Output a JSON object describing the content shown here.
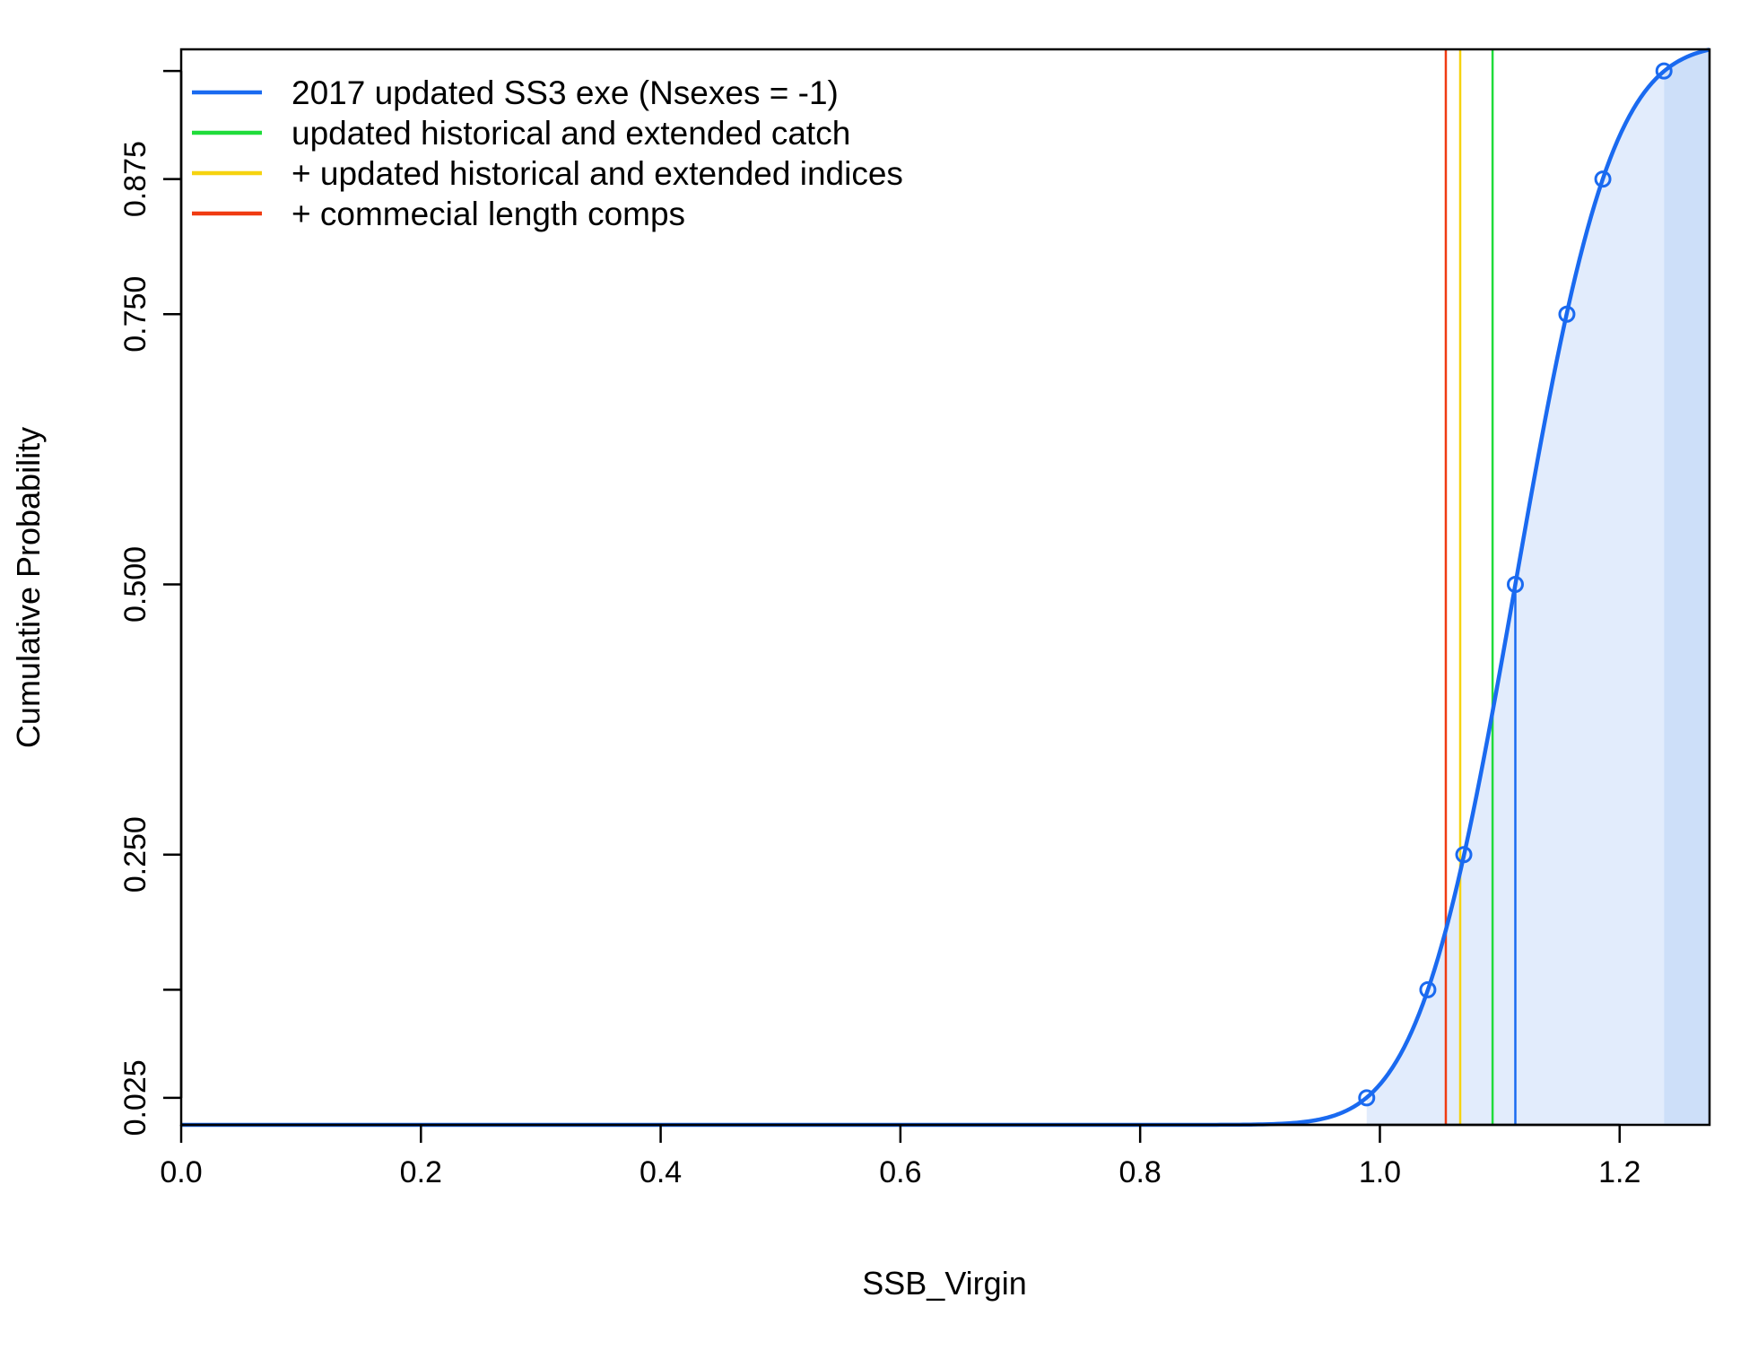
{
  "chart_data": {
    "type": "line",
    "title": "",
    "xlabel": "SSB_Virgin",
    "ylabel": "Cumulative Probability",
    "xlim": [
      0.0,
      1.275
    ],
    "ylim": [
      0.0,
      0.995
    ],
    "x_ticks": [
      "0.0",
      "0.2",
      "0.4",
      "0.6",
      "0.8",
      "1.0",
      "1.2"
    ],
    "x_tick_values": [
      0.0,
      0.2,
      0.4,
      0.6,
      0.8,
      1.0,
      1.2
    ],
    "y_ticks": [
      "0.025",
      "0.250",
      "0.500",
      "0.750",
      "0.875"
    ],
    "y_tick_values": [
      0.025,
      0.25,
      0.5,
      0.75,
      0.875
    ],
    "y_minor_tick_values": [
      0.125,
      0.975
    ],
    "grid": false,
    "legend_position": "top-left",
    "series": [
      {
        "name": "2017 updated SS3 exe (Nsexes = -1)",
        "color": "#1a6af0",
        "style": "curve",
        "mean": 1.113,
        "sd": 0.0634,
        "quantile_points": [
          {
            "x": 0.989,
            "y": 0.025
          },
          {
            "x": 1.04,
            "y": 0.125
          },
          {
            "x": 1.07,
            "y": 0.25
          },
          {
            "x": 1.113,
            "y": 0.5
          },
          {
            "x": 1.156,
            "y": 0.75
          },
          {
            "x": 1.186,
            "y": 0.875
          },
          {
            "x": 1.237,
            "y": 0.975
          }
        ],
        "vline_x": 1.113,
        "shade_interval": [
          0.989,
          1.237
        ]
      },
      {
        "name": "updated historical and extended catch",
        "color": "#1fdc3a",
        "style": "vline",
        "x": 1.094
      },
      {
        "name": "+ updated historical and extended indices",
        "color": "#f6d30f",
        "style": "vline",
        "x": 1.067
      },
      {
        "name": "+ commecial length comps",
        "color": "#f03b12",
        "style": "vline",
        "x": 1.055
      }
    ]
  }
}
